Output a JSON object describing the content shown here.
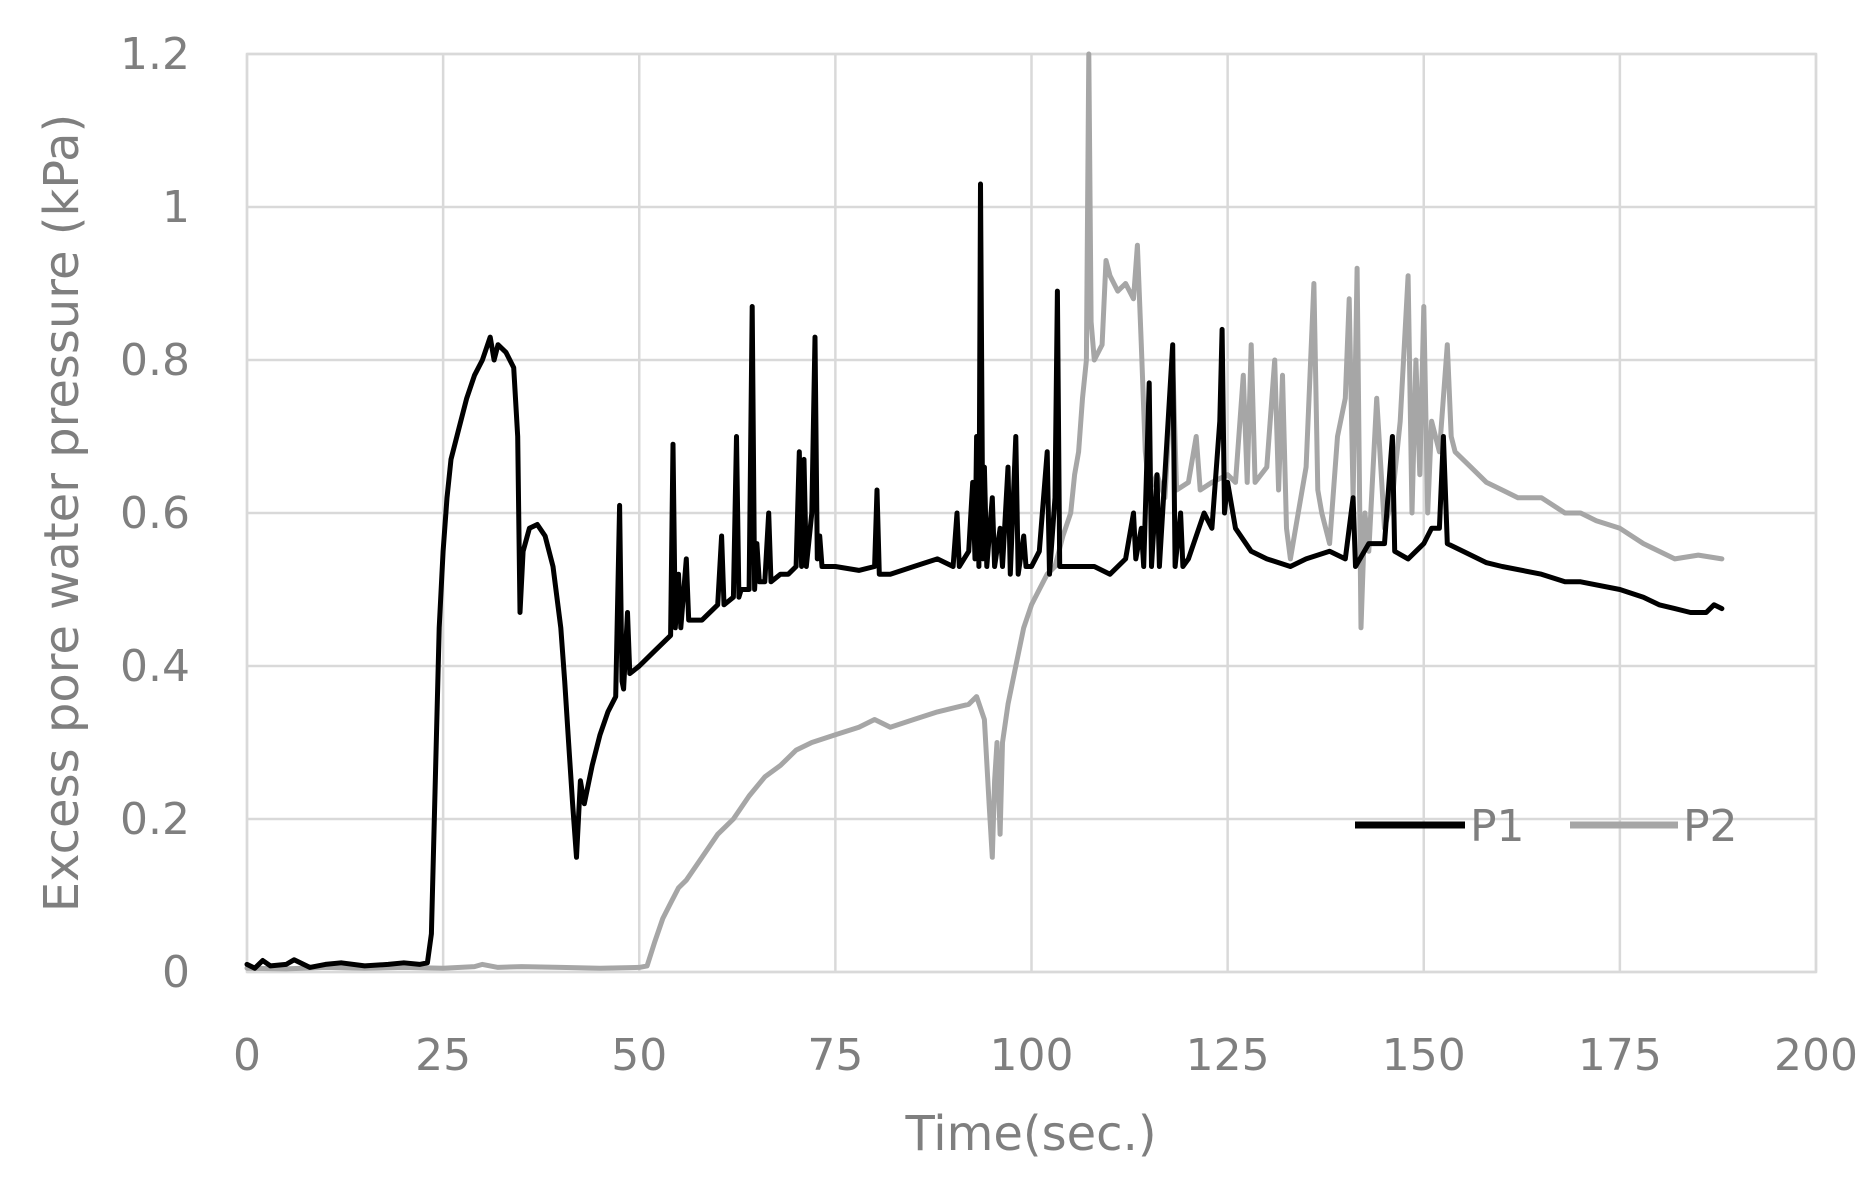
{
  "chart_data": {
    "type": "line",
    "title": "",
    "xlabel": "Time(sec.)",
    "ylabel": "Excess pore water pressure (kPa)",
    "xlim": [
      0,
      200
    ],
    "ylim": [
      0,
      1.2
    ],
    "x_ticks": [
      0,
      25,
      50,
      75,
      100,
      125,
      150,
      175,
      200
    ],
    "x_tick_labels": [
      "0",
      "25",
      "50",
      "75",
      "100",
      "125",
      "150",
      "175",
      "200"
    ],
    "y_ticks": [
      0,
      0.2,
      0.4,
      0.6,
      0.8,
      1.0,
      1.2
    ],
    "y_tick_labels": [
      "0",
      "0.2",
      "0.4",
      "0.6",
      "0.8",
      "1",
      "1.2"
    ],
    "grid": true,
    "legend_position": "bottom-right, inside plot",
    "series": [
      {
        "name": "P1",
        "color": "#000000",
        "points": [
          [
            0,
            0.01
          ],
          [
            1,
            0.005
          ],
          [
            2,
            0.015
          ],
          [
            3,
            0.008
          ],
          [
            5,
            0.01
          ],
          [
            6,
            0.016
          ],
          [
            8,
            0.006
          ],
          [
            10,
            0.01
          ],
          [
            12,
            0.012
          ],
          [
            15,
            0.008
          ],
          [
            18,
            0.01
          ],
          [
            20,
            0.012
          ],
          [
            22,
            0.01
          ],
          [
            23,
            0.012
          ],
          [
            23.5,
            0.05
          ],
          [
            24,
            0.25
          ],
          [
            24.5,
            0.45
          ],
          [
            25,
            0.55
          ],
          [
            25.5,
            0.62
          ],
          [
            26,
            0.67
          ],
          [
            27,
            0.71
          ],
          [
            28,
            0.75
          ],
          [
            29,
            0.78
          ],
          [
            30,
            0.8
          ],
          [
            31,
            0.83
          ],
          [
            31.5,
            0.8
          ],
          [
            32,
            0.82
          ],
          [
            33,
            0.81
          ],
          [
            34,
            0.79
          ],
          [
            34.5,
            0.7
          ],
          [
            34.8,
            0.47
          ],
          [
            35.2,
            0.55
          ],
          [
            36,
            0.58
          ],
          [
            37,
            0.585
          ],
          [
            38,
            0.57
          ],
          [
            39,
            0.53
          ],
          [
            40,
            0.45
          ],
          [
            40.5,
            0.38
          ],
          [
            41,
            0.3
          ],
          [
            41.5,
            0.22
          ],
          [
            42,
            0.15
          ],
          [
            42.5,
            0.25
          ],
          [
            43,
            0.22
          ],
          [
            44,
            0.27
          ],
          [
            45,
            0.31
          ],
          [
            46,
            0.34
          ],
          [
            47,
            0.36
          ],
          [
            47.5,
            0.61
          ],
          [
            47.8,
            0.38
          ],
          [
            48,
            0.37
          ],
          [
            48.5,
            0.47
          ],
          [
            48.8,
            0.39
          ],
          [
            50,
            0.4
          ],
          [
            52,
            0.42
          ],
          [
            54,
            0.44
          ],
          [
            54.3,
            0.69
          ],
          [
            54.6,
            0.45
          ],
          [
            55,
            0.52
          ],
          [
            55.3,
            0.45
          ],
          [
            56,
            0.54
          ],
          [
            56.3,
            0.46
          ],
          [
            58,
            0.46
          ],
          [
            60,
            0.48
          ],
          [
            60.5,
            0.57
          ],
          [
            60.8,
            0.48
          ],
          [
            62,
            0.49
          ],
          [
            62.4,
            0.7
          ],
          [
            62.7,
            0.49
          ],
          [
            63,
            0.5
          ],
          [
            64,
            0.5
          ],
          [
            64.4,
            0.87
          ],
          [
            64.7,
            0.5
          ],
          [
            65,
            0.56
          ],
          [
            65.3,
            0.51
          ],
          [
            66,
            0.51
          ],
          [
            66.5,
            0.6
          ],
          [
            66.8,
            0.51
          ],
          [
            68,
            0.52
          ],
          [
            69,
            0.52
          ],
          [
            70,
            0.53
          ],
          [
            70.4,
            0.68
          ],
          [
            70.7,
            0.53
          ],
          [
            71,
            0.67
          ],
          [
            71.3,
            0.53
          ],
          [
            72,
            0.6
          ],
          [
            72.4,
            0.83
          ],
          [
            72.7,
            0.54
          ],
          [
            73,
            0.57
          ],
          [
            73.3,
            0.53
          ],
          [
            75,
            0.53
          ],
          [
            78,
            0.525
          ],
          [
            80,
            0.53
          ],
          [
            80.3,
            0.63
          ],
          [
            80.6,
            0.52
          ],
          [
            82,
            0.52
          ],
          [
            85,
            0.53
          ],
          [
            88,
            0.54
          ],
          [
            90,
            0.53
          ],
          [
            90.5,
            0.6
          ],
          [
            90.8,
            0.53
          ],
          [
            92,
            0.55
          ],
          [
            92.5,
            0.64
          ],
          [
            92.8,
            0.54
          ],
          [
            93,
            0.7
          ],
          [
            93.3,
            0.53
          ],
          [
            93.5,
            1.03
          ],
          [
            93.8,
            0.54
          ],
          [
            94,
            0.66
          ],
          [
            94.3,
            0.53
          ],
          [
            95,
            0.62
          ],
          [
            95.3,
            0.53
          ],
          [
            96,
            0.58
          ],
          [
            96.3,
            0.53
          ],
          [
            97,
            0.66
          ],
          [
            97.3,
            0.52
          ],
          [
            98,
            0.7
          ],
          [
            98.3,
            0.52
          ],
          [
            99,
            0.57
          ],
          [
            99.3,
            0.53
          ],
          [
            100,
            0.53
          ],
          [
            101,
            0.55
          ],
          [
            102,
            0.68
          ],
          [
            102.3,
            0.52
          ],
          [
            103,
            0.62
          ],
          [
            103.3,
            0.89
          ],
          [
            103.6,
            0.53
          ],
          [
            105,
            0.53
          ],
          [
            108,
            0.53
          ],
          [
            110,
            0.52
          ],
          [
            112,
            0.54
          ],
          [
            113,
            0.6
          ],
          [
            113.3,
            0.54
          ],
          [
            114,
            0.58
          ],
          [
            114.3,
            0.53
          ],
          [
            115,
            0.77
          ],
          [
            115.3,
            0.53
          ],
          [
            116,
            0.65
          ],
          [
            116.3,
            0.53
          ],
          [
            118,
            0.82
          ],
          [
            118.3,
            0.53
          ],
          [
            119,
            0.6
          ],
          [
            119.3,
            0.53
          ],
          [
            120,
            0.54
          ],
          [
            122,
            0.6
          ],
          [
            123,
            0.58
          ],
          [
            124,
            0.72
          ],
          [
            124.3,
            0.84
          ],
          [
            124.6,
            0.6
          ],
          [
            125,
            0.64
          ],
          [
            126,
            0.58
          ],
          [
            128,
            0.55
          ],
          [
            130,
            0.54
          ],
          [
            133,
            0.53
          ],
          [
            135,
            0.54
          ],
          [
            138,
            0.55
          ],
          [
            140,
            0.54
          ],
          [
            141,
            0.62
          ],
          [
            141.3,
            0.53
          ],
          [
            143,
            0.56
          ],
          [
            145,
            0.56
          ],
          [
            146,
            0.7
          ],
          [
            146.3,
            0.55
          ],
          [
            148,
            0.54
          ],
          [
            150,
            0.56
          ],
          [
            151,
            0.58
          ],
          [
            152,
            0.58
          ],
          [
            152.5,
            0.7
          ],
          [
            153,
            0.56
          ],
          [
            155,
            0.55
          ],
          [
            158,
            0.535
          ],
          [
            160,
            0.53
          ],
          [
            165,
            0.52
          ],
          [
            168,
            0.51
          ],
          [
            170,
            0.51
          ],
          [
            175,
            0.5
          ],
          [
            178,
            0.49
          ],
          [
            180,
            0.48
          ],
          [
            182,
            0.475
          ],
          [
            184,
            0.47
          ],
          [
            186,
            0.47
          ],
          [
            187,
            0.48
          ],
          [
            188,
            0.475
          ]
        ]
      },
      {
        "name": "P2",
        "color": "#a6a6a6",
        "points": [
          [
            0,
            0.005
          ],
          [
            5,
            0.004
          ],
          [
            10,
            0.006
          ],
          [
            15,
            0.005
          ],
          [
            20,
            0.006
          ],
          [
            25,
            0.005
          ],
          [
            29,
            0.007
          ],
          [
            30,
            0.01
          ],
          [
            32,
            0.006
          ],
          [
            35,
            0.007
          ],
          [
            40,
            0.006
          ],
          [
            45,
            0.005
          ],
          [
            50,
            0.006
          ],
          [
            51,
            0.008
          ],
          [
            52,
            0.04
          ],
          [
            53,
            0.07
          ],
          [
            54,
            0.09
          ],
          [
            55,
            0.11
          ],
          [
            56,
            0.12
          ],
          [
            58,
            0.15
          ],
          [
            60,
            0.18
          ],
          [
            62,
            0.2
          ],
          [
            64,
            0.23
          ],
          [
            66,
            0.255
          ],
          [
            68,
            0.27
          ],
          [
            70,
            0.29
          ],
          [
            72,
            0.3
          ],
          [
            75,
            0.31
          ],
          [
            78,
            0.32
          ],
          [
            80,
            0.33
          ],
          [
            82,
            0.32
          ],
          [
            85,
            0.33
          ],
          [
            88,
            0.34
          ],
          [
            90,
            0.345
          ],
          [
            92,
            0.35
          ],
          [
            93,
            0.36
          ],
          [
            94,
            0.33
          ],
          [
            94.6,
            0.22
          ],
          [
            95,
            0.15
          ],
          [
            95.3,
            0.25
          ],
          [
            95.6,
            0.3
          ],
          [
            96,
            0.18
          ],
          [
            96.3,
            0.3
          ],
          [
            97,
            0.35
          ],
          [
            98,
            0.4
          ],
          [
            99,
            0.45
          ],
          [
            100,
            0.48
          ],
          [
            101,
            0.5
          ],
          [
            102,
            0.52
          ],
          [
            103,
            0.53
          ],
          [
            104,
            0.57
          ],
          [
            105,
            0.6
          ],
          [
            105.5,
            0.65
          ],
          [
            106,
            0.68
          ],
          [
            106.5,
            0.75
          ],
          [
            107,
            0.8
          ],
          [
            107.3,
            1.2
          ],
          [
            107.6,
            0.85
          ],
          [
            108,
            0.8
          ],
          [
            109,
            0.82
          ],
          [
            109.5,
            0.93
          ],
          [
            110,
            0.91
          ],
          [
            111,
            0.89
          ],
          [
            112,
            0.9
          ],
          [
            113,
            0.88
          ],
          [
            113.5,
            0.95
          ],
          [
            114,
            0.82
          ],
          [
            114.5,
            0.68
          ],
          [
            115,
            0.63
          ],
          [
            116,
            0.65
          ],
          [
            117,
            0.62
          ],
          [
            118,
            0.8
          ],
          [
            118.5,
            0.63
          ],
          [
            120,
            0.64
          ],
          [
            121,
            0.7
          ],
          [
            121.5,
            0.63
          ],
          [
            123,
            0.64
          ],
          [
            125,
            0.65
          ],
          [
            126,
            0.64
          ],
          [
            127,
            0.78
          ],
          [
            127.5,
            0.64
          ],
          [
            128,
            0.82
          ],
          [
            128.5,
            0.64
          ],
          [
            130,
            0.66
          ],
          [
            131,
            0.8
          ],
          [
            131.5,
            0.63
          ],
          [
            132,
            0.78
          ],
          [
            132.5,
            0.58
          ],
          [
            133,
            0.54
          ],
          [
            134,
            0.6
          ],
          [
            135,
            0.66
          ],
          [
            136,
            0.9
          ],
          [
            136.5,
            0.63
          ],
          [
            137,
            0.6
          ],
          [
            138,
            0.56
          ],
          [
            139,
            0.7
          ],
          [
            140,
            0.75
          ],
          [
            140.5,
            0.88
          ],
          [
            141,
            0.62
          ],
          [
            141.5,
            0.92
          ],
          [
            142,
            0.45
          ],
          [
            142.5,
            0.6
          ],
          [
            143,
            0.55
          ],
          [
            144,
            0.75
          ],
          [
            145,
            0.58
          ],
          [
            146,
            0.62
          ],
          [
            147,
            0.72
          ],
          [
            148,
            0.91
          ],
          [
            148.5,
            0.6
          ],
          [
            149,
            0.8
          ],
          [
            149.5,
            0.65
          ],
          [
            150,
            0.87
          ],
          [
            150.5,
            0.6
          ],
          [
            151,
            0.72
          ],
          [
            152,
            0.68
          ],
          [
            153,
            0.82
          ],
          [
            153.5,
            0.7
          ],
          [
            154,
            0.68
          ],
          [
            156,
            0.66
          ],
          [
            158,
            0.64
          ],
          [
            160,
            0.63
          ],
          [
            162,
            0.62
          ],
          [
            165,
            0.62
          ],
          [
            168,
            0.6
          ],
          [
            170,
            0.6
          ],
          [
            172,
            0.59
          ],
          [
            175,
            0.58
          ],
          [
            178,
            0.56
          ],
          [
            180,
            0.55
          ],
          [
            182,
            0.54
          ],
          [
            185,
            0.545
          ],
          [
            188,
            0.54
          ]
        ]
      }
    ]
  }
}
